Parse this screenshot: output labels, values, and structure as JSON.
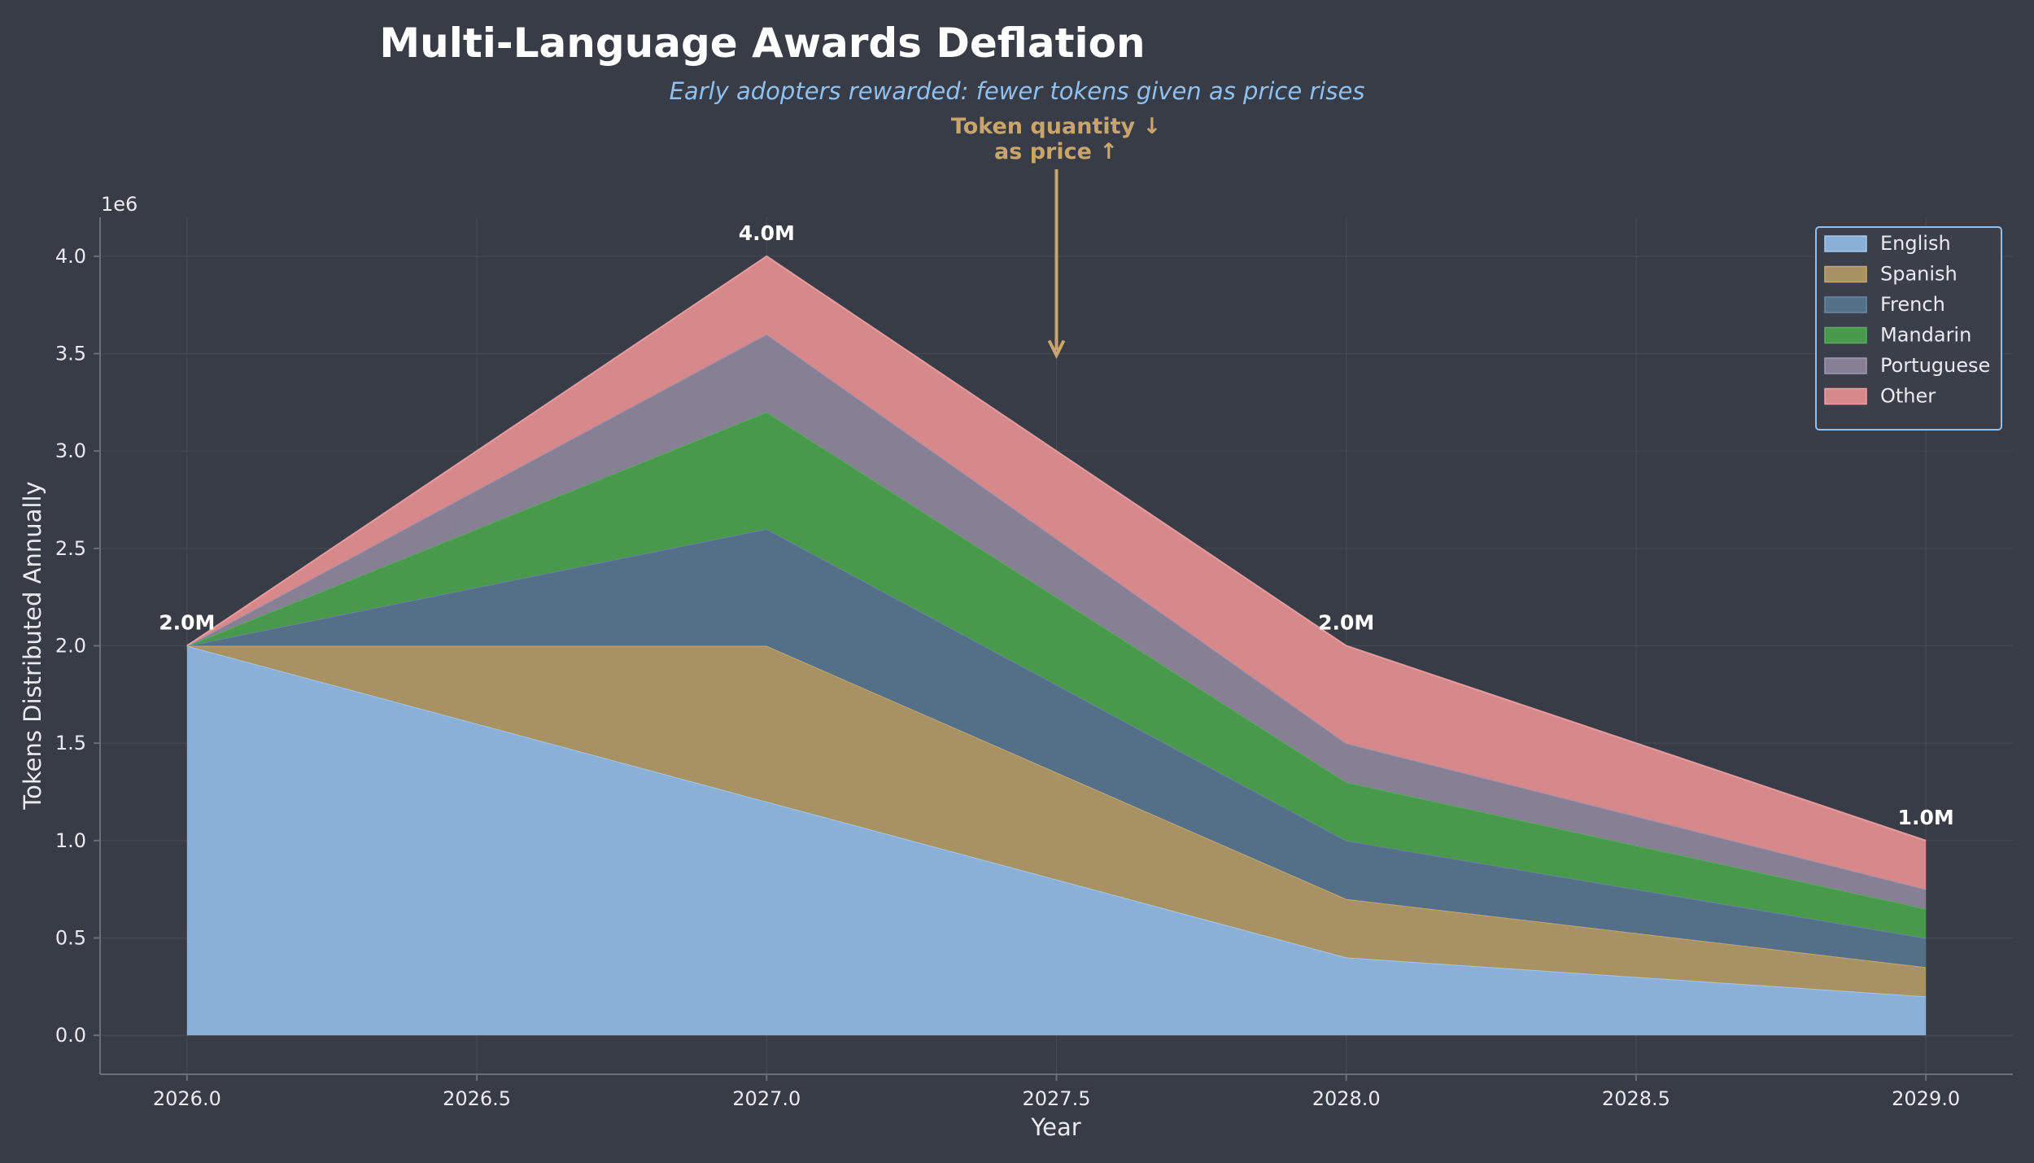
{
  "colors": {
    "background": "#383c46",
    "grid": "#50545f",
    "axis": "#6a6e78",
    "text": "#e9eaee",
    "title": "#ffffff",
    "subtitle": "#8fc0ef",
    "annotation": "#c9a56c",
    "legend_border": "#8fc0ef"
  },
  "chart_data": {
    "type": "area",
    "stacked": true,
    "title": "Multi-Language Awards Deflation",
    "subtitle": "Early adopters rewarded: fewer tokens given as price rises",
    "xlabel": "Year",
    "ylabel": "Tokens Distributed Annually",
    "y_offset_label": "1e6",
    "x": [
      2026,
      2027,
      2028,
      2029
    ],
    "xlim": [
      2025.85,
      2029.15
    ],
    "ylim": [
      -200000,
      4200000
    ],
    "xticks": [
      2026.0,
      2026.5,
      2027.0,
      2027.5,
      2028.0,
      2028.5,
      2029.0
    ],
    "xtick_labels": [
      "2026.0",
      "2026.5",
      "2027.0",
      "2027.5",
      "2028.0",
      "2028.5",
      "2029.0"
    ],
    "yticks": [
      0,
      500000,
      1000000,
      1500000,
      2000000,
      2500000,
      3000000,
      3500000,
      4000000
    ],
    "ytick_labels": [
      "0.0",
      "0.5",
      "1.0",
      "1.5",
      "2.0",
      "2.5",
      "3.0",
      "3.5",
      "4.0"
    ],
    "grid": true,
    "legend_position": "top-right",
    "series": [
      {
        "name": "English",
        "values": [
          2000000,
          1200000,
          400000,
          200000
        ],
        "color": "#8ab0d8",
        "edge": "#a8c8ee"
      },
      {
        "name": "Spanish",
        "values": [
          0,
          800000,
          300000,
          150000
        ],
        "color": "#a89263",
        "edge": "#c8a870"
      },
      {
        "name": "French",
        "values": [
          0,
          600000,
          300000,
          150000
        ],
        "color": "#546f88",
        "edge": "#6a8aa6"
      },
      {
        "name": "Mandarin",
        "values": [
          0,
          600000,
          300000,
          150000
        ],
        "color": "#48994c",
        "edge": "#5aae5e"
      },
      {
        "name": "Portuguese",
        "values": [
          0,
          400000,
          200000,
          100000
        ],
        "color": "#877f94",
        "edge": "#a497b4"
      },
      {
        "name": "Other",
        "values": [
          0,
          400000,
          500000,
          250000
        ],
        "color": "#d6888a",
        "edge": "#f0a0a2"
      }
    ],
    "total_labels": [
      {
        "x": 2026,
        "value": 2000000,
        "text": "2.0M"
      },
      {
        "x": 2027,
        "value": 4000000,
        "text": "4.0M"
      },
      {
        "x": 2028,
        "value": 2000000,
        "text": "2.0M"
      },
      {
        "x": 2029,
        "value": 1000000,
        "text": "1.0M"
      }
    ],
    "annotation": {
      "line1": "Token quantity ↓",
      "line2": "as price ↑",
      "arrow_x": 2027.5,
      "arrow_y": 3500000
    }
  }
}
